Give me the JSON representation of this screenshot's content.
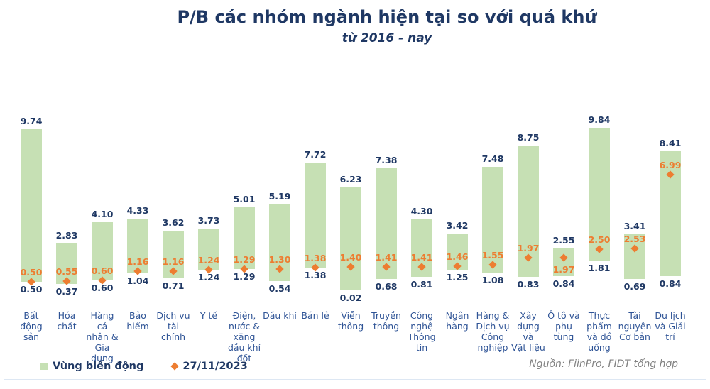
{
  "title": "P/B các nhóm ngành hiện tại so với quá khứ",
  "subtitle": "từ 2016 - nay",
  "legend": {
    "range_label": "Vùng biến động",
    "marker_label": "27/11/2023"
  },
  "source": "Nguồn: FiinPro, FIDT tổng hợp",
  "colors": {
    "bar_green": "#c6e0b4",
    "marker_orange": "#ed7d31",
    "value_navy": "#1f3864",
    "category_blue": "#2f5496",
    "source_gray": "#808080"
  },
  "chart_data": {
    "type": "bar",
    "subtype": "floating-range-bars-with-current-marker",
    "title": "P/B các nhóm ngành hiện tại so với quá khứ",
    "subtitle": "từ 2016 - nay",
    "xlabel": "",
    "ylabel": "P/B",
    "ylim": [
      0,
      10.5
    ],
    "grid": false,
    "legend_position": "bottom-left",
    "categories": [
      "Bất động sản",
      "Hóa chất",
      "Hàng cá nhân & Gia dụng",
      "Bảo hiểm",
      "Dịch vụ tài chính",
      "Y tế",
      "Điện, nước & xăng dầu khí đốt",
      "Dầu khí",
      "Bán lẻ",
      "Viễn thông",
      "Truyền thông",
      "Công nghệ Thông tin",
      "Ngân hàng",
      "Hàng & Dịch vụ Công nghiệp",
      "Xây dựng và Vật liệu",
      "Ô tô và phụ tùng",
      "Thực phẩm và đồ uống",
      "Tài nguyên Cơ bản",
      "Du lịch và Giải trí"
    ],
    "categories_wrapped": [
      "Bất\nđộng\nsản",
      "Hóa\nchất",
      "Hàng cá\nnhân &\nGia\ndụng",
      "Bảo\nhiểm",
      "Dịch vụ\ntài chính",
      "Y tế",
      "Điện,\nnước &\nxăng\ndầu khí\nđốt",
      "Dầu khí",
      "Bán lẻ",
      "Viễn\nthông",
      "Truyền\nthông",
      "Công\nnghệ\nThông\ntin",
      "Ngân\nhàng",
      "Hàng &\nDịch vụ\nCông\nnghiệp",
      "Xây\ndựng và\nVật liệu",
      "Ô tô và\nphụ\ntùng",
      "Thực\nphẩm\nvà đồ\nuống",
      "Tài\nnguyên\nCơ bản",
      "Du lịch\nvà Giải\ntrí"
    ],
    "series": [
      {
        "name": "Vùng biến động (min)",
        "values": [
          0.5,
          0.37,
          0.6,
          1.04,
          0.71,
          1.24,
          1.29,
          0.54,
          1.38,
          0.02,
          0.68,
          0.81,
          1.25,
          1.08,
          0.83,
          0.84,
          1.81,
          0.69,
          0.84
        ]
      },
      {
        "name": "Vùng biến động (max)",
        "values": [
          9.74,
          2.83,
          4.1,
          4.33,
          3.62,
          3.73,
          5.01,
          5.19,
          7.72,
          6.23,
          7.38,
          4.3,
          3.42,
          7.48,
          8.75,
          2.55,
          9.84,
          3.41,
          8.41
        ]
      },
      {
        "name": "27/11/2023",
        "values": [
          0.5,
          0.55,
          0.6,
          1.16,
          1.16,
          1.24,
          1.29,
          1.3,
          1.38,
          1.4,
          1.41,
          1.41,
          1.46,
          1.55,
          1.97,
          1.97,
          2.5,
          2.53,
          6.99
        ]
      }
    ]
  }
}
